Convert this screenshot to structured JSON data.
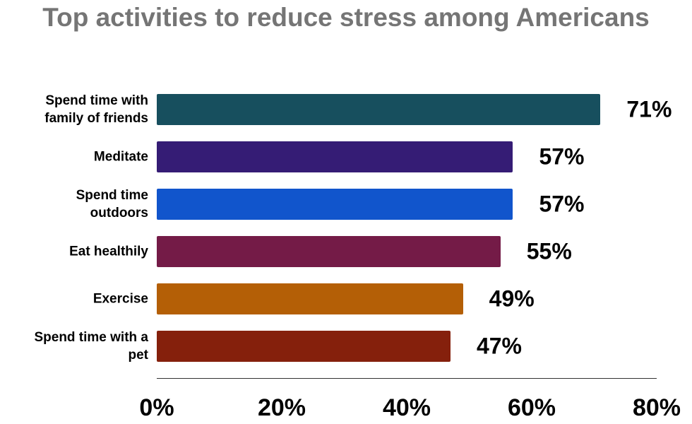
{
  "chart_data": {
    "type": "bar",
    "orientation": "horizontal",
    "title": "Top activities to reduce stress among Americans",
    "categories": [
      "Spend time with\nfamily of friends",
      "Meditate",
      "Spend time\noutdoors",
      "Eat healthily",
      "Exercise",
      "Spend time with a\npet"
    ],
    "values": [
      71,
      57,
      57,
      55,
      49,
      47
    ],
    "value_labels": [
      "71%",
      "57%",
      "57%",
      "55%",
      "49%",
      "47%"
    ],
    "colors": [
      "#174f5e",
      "#351c75",
      "#1155cc",
      "#741b47",
      "#b45f06",
      "#85200c"
    ],
    "xlim": [
      0,
      80
    ],
    "xticks": [
      {
        "value": 0,
        "label": "0%"
      },
      {
        "value": 20,
        "label": "20%"
      },
      {
        "value": 40,
        "label": "40%"
      },
      {
        "value": 60,
        "label": "60%"
      },
      {
        "value": 80,
        "label": "80%"
      }
    ]
  }
}
